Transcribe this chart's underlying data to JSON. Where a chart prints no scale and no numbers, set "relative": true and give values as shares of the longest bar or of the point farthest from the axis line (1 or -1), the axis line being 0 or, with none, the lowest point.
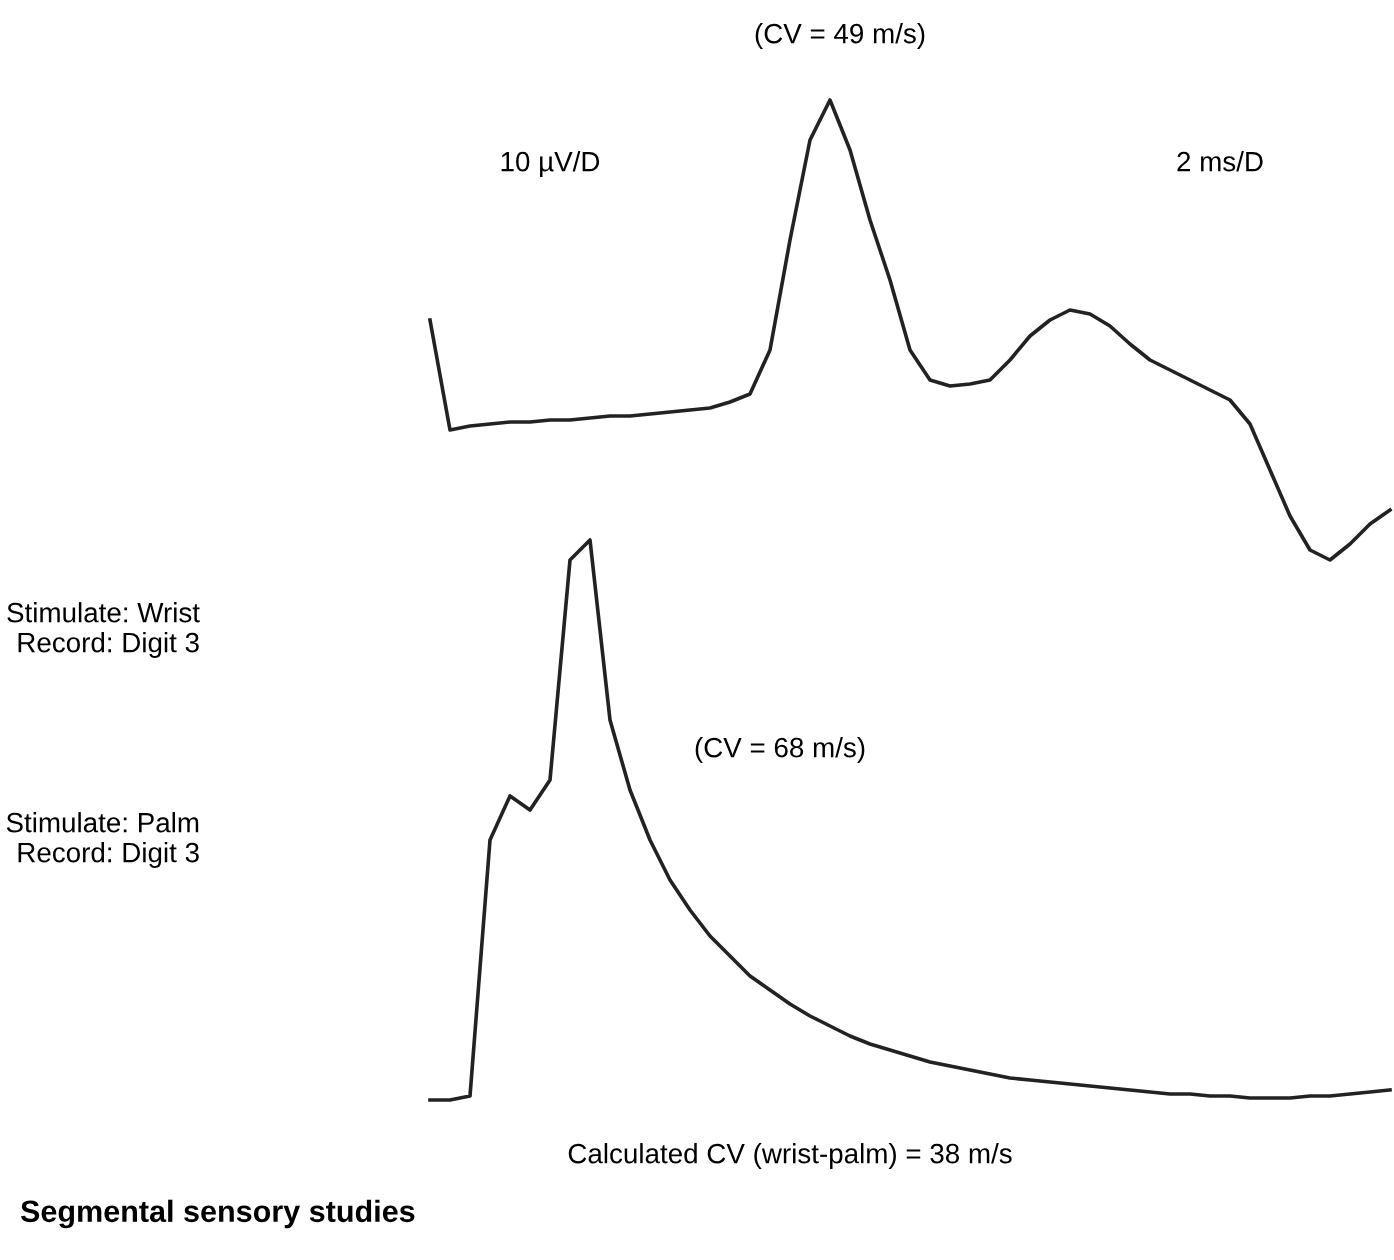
{
  "chart_data": {
    "type": "line",
    "relative": true,
    "title": "Segmental sensory studies",
    "categories": [
      null,
      null,
      null,
      null,
      null,
      null,
      null,
      null,
      null,
      null,
      null,
      null,
      null,
      null,
      null,
      null,
      null,
      null,
      null,
      null,
      null,
      null,
      null,
      null,
      null,
      null,
      null,
      null,
      null,
      null,
      null,
      null,
      null,
      null,
      null,
      null,
      null,
      null,
      null,
      null,
      null,
      null,
      null,
      null,
      null,
      null,
      null,
      null,
      null
    ],
    "series": [
      {
        "color": "#222222",
        "values": [
          0.78,
          0.67,
          0.674,
          0.676,
          0.678,
          0.678,
          0.68,
          0.68,
          0.682,
          0.684,
          0.684,
          0.686,
          0.688,
          0.69,
          0.692,
          0.698,
          0.706,
          0.75,
          0.86,
          0.96,
          1,
          0.95,
          0.88,
          0.82,
          0.75,
          0.72,
          0.714,
          0.716,
          0.72,
          0.74,
          0.764,
          0.78,
          0.79,
          0.786,
          0.774,
          0.756,
          0.74,
          0.73,
          0.72,
          0.71,
          0.7,
          0.676,
          0.63,
          0.584,
          0.55,
          0.54,
          0.556,
          0.576,
          0.59
        ]
      },
      {
        "color": "#222222",
        "values": [
          0,
          0,
          0.004,
          0.26,
          0.304,
          0.29,
          0.32,
          0.54,
          0.56,
          0.38,
          0.31,
          0.26,
          0.22,
          0.19,
          0.164,
          0.144,
          0.124,
          0.11,
          0.096,
          0.084,
          0.074,
          0.064,
          0.056,
          0.05,
          0.044,
          0.038,
          0.034,
          0.03,
          0.026,
          0.022,
          0.02,
          0.018,
          0.016,
          0.014,
          0.012,
          0.01,
          0.008,
          0.006,
          0.006,
          0.004,
          0.004,
          0.002,
          0.002,
          0.002,
          0.004,
          0.004,
          0.006,
          0.008,
          0.01
        ]
      }
    ],
    "annotations": [
      "(CV = 49 m/s)",
      "10 µV/D",
      "2 ms/D",
      "Stimulate: Wrist\nRecord: Digit 3",
      "Stimulate: Palm\nRecord: Digit 3",
      "(CV = 68 m/s)",
      "Calculated CV (wrist-palm) = 38 m/s"
    ]
  }
}
